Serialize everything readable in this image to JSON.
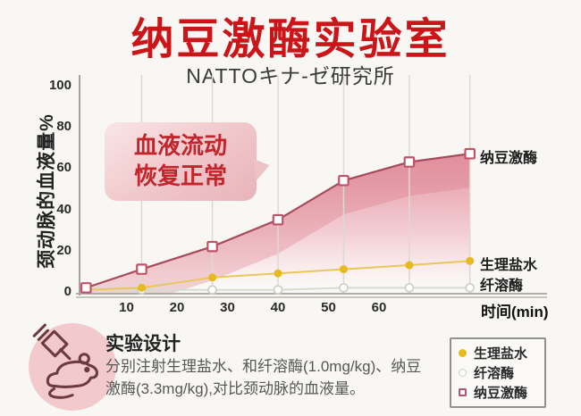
{
  "header": {
    "title": "纳豆激酶实验室",
    "subtitle": "NATTOキナ-ゼ研究所"
  },
  "annotation": {
    "line1": "血液流动",
    "line2": "恢复正常"
  },
  "chart_data": {
    "type": "line",
    "x_minutes": [
      2,
      13,
      27,
      40,
      53,
      66,
      78
    ],
    "series": [
      {
        "name": "纳豆激酶",
        "marker": "open-square",
        "line_color": "#a64a5c",
        "marker_color": "#bf5468",
        "area": true,
        "values": [
          2,
          11,
          22,
          35,
          54,
          63,
          67
        ]
      },
      {
        "name": "生理盐水",
        "marker": "filled-circle",
        "line_color": "#e9c75a",
        "marker_color": "#e6ba1c",
        "values": [
          1,
          2,
          7,
          9,
          11,
          13,
          15
        ]
      },
      {
        "name": "纤溶酶",
        "marker": "open-circle",
        "line_color": "#d6dccf",
        "marker_color": "#c9cfc2",
        "values": [
          2,
          1,
          1,
          1,
          2,
          2,
          2
        ]
      }
    ],
    "xticks": [
      10,
      20,
      30,
      40,
      50,
      60
    ],
    "yticks": [
      0,
      20,
      40,
      60,
      80,
      100
    ],
    "ylim": [
      0,
      100
    ],
    "xlabel": "时间(min)",
    "ylabel": "颈动脉的血液量%",
    "grid": "vertical-through-points",
    "legend_position": "bottom-right",
    "area_top_color": "#e2919e"
  },
  "experiment": {
    "heading": "实验设计",
    "line1": "分别注射生理盐水、和纤溶酶(1.0mg/kg)、纳豆",
    "line2": "激酶(3.3mg/kg),对比颈动脉的血液量。"
  },
  "legend": {
    "items": [
      {
        "label": "生理盐水",
        "marker": "filled-circle"
      },
      {
        "label": "纤溶酶",
        "marker": "open-circle"
      },
      {
        "label": "纳豆激酶",
        "marker": "open-square"
      }
    ]
  },
  "colors": {
    "title_red": "#cc1518",
    "bubble_text_red": "#c2252c",
    "natto_line": "#a64a5c",
    "saline_gold": "#e6ba1c",
    "plasmin_gray": "#c9cfc2"
  }
}
